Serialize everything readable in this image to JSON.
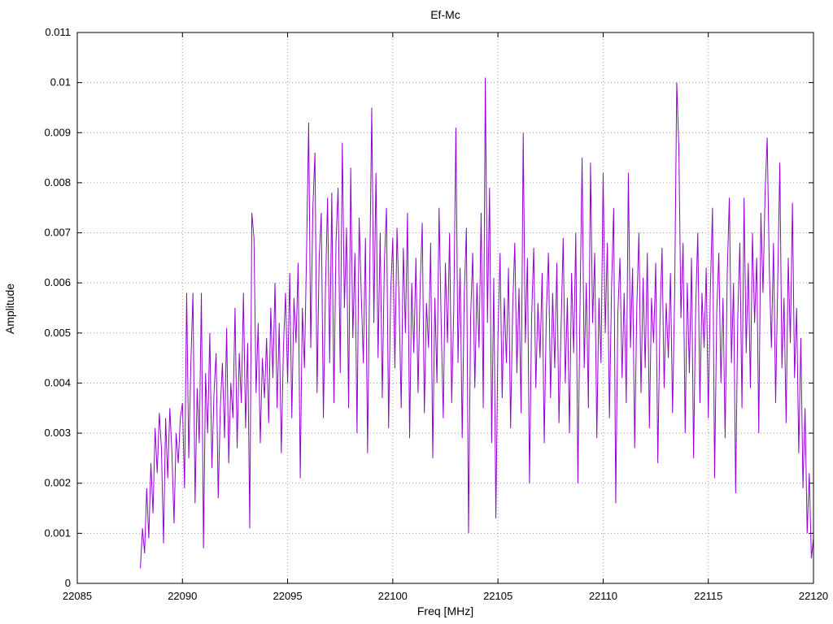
{
  "chart_data": {
    "type": "line",
    "title": "Ef-Mc",
    "xlabel": "Freq [MHz]",
    "ylabel": "Amplitude",
    "xlim": [
      22085,
      22120
    ],
    "ylim": [
      0,
      0.011
    ],
    "x_ticks": [
      22085,
      22090,
      22095,
      22100,
      22105,
      22110,
      22115,
      22120
    ],
    "y_ticks": [
      0,
      0.001,
      0.002,
      0.003,
      0.004,
      0.005,
      0.006,
      0.007,
      0.008,
      0.009,
      0.01,
      0.011
    ],
    "grid": true,
    "legend": "none",
    "line_color": "#9400d3",
    "series": [
      {
        "name": "Ef-Mc",
        "x_start": 22088.0,
        "x_step": 0.1,
        "values": [
          0.0003,
          0.0011,
          0.0006,
          0.0019,
          0.0009,
          0.0024,
          0.0014,
          0.0031,
          0.0022,
          0.0034,
          0.0027,
          0.0008,
          0.0033,
          0.0021,
          0.0035,
          0.0026,
          0.0012,
          0.003,
          0.0024,
          0.0033,
          0.0036,
          0.0019,
          0.0058,
          0.0025,
          0.0044,
          0.0058,
          0.0016,
          0.0039,
          0.0028,
          0.0058,
          0.0007,
          0.0042,
          0.003,
          0.005,
          0.0023,
          0.0038,
          0.0046,
          0.0017,
          0.0035,
          0.0044,
          0.0029,
          0.0051,
          0.0024,
          0.004,
          0.0033,
          0.0055,
          0.0027,
          0.0046,
          0.0036,
          0.0058,
          0.0031,
          0.0048,
          0.0011,
          0.0074,
          0.0069,
          0.0038,
          0.0052,
          0.0028,
          0.0045,
          0.0037,
          0.0049,
          0.0032,
          0.0055,
          0.0041,
          0.006,
          0.0035,
          0.0052,
          0.0026,
          0.0047,
          0.0058,
          0.004,
          0.0062,
          0.0033,
          0.0057,
          0.0048,
          0.0064,
          0.0021,
          0.0055,
          0.0043,
          0.0066,
          0.0092,
          0.0047,
          0.0075,
          0.0086,
          0.0038,
          0.0065,
          0.0074,
          0.0033,
          0.0059,
          0.0077,
          0.0044,
          0.0078,
          0.0036,
          0.0068,
          0.0079,
          0.0042,
          0.0088,
          0.0055,
          0.0071,
          0.0035,
          0.0083,
          0.0049,
          0.0066,
          0.003,
          0.0073,
          0.0058,
          0.0044,
          0.0069,
          0.0026,
          0.0061,
          0.0095,
          0.0052,
          0.0082,
          0.0045,
          0.007,
          0.0037,
          0.0064,
          0.0075,
          0.0031,
          0.0058,
          0.0069,
          0.0043,
          0.0071,
          0.0056,
          0.0035,
          0.0067,
          0.005,
          0.0074,
          0.0029,
          0.006,
          0.0046,
          0.0065,
          0.0038,
          0.0059,
          0.0072,
          0.0034,
          0.0056,
          0.0047,
          0.0068,
          0.0025,
          0.0057,
          0.004,
          0.0075,
          0.0052,
          0.0033,
          0.0064,
          0.0048,
          0.007,
          0.0036,
          0.0055,
          0.0091,
          0.0044,
          0.0063,
          0.0029,
          0.0058,
          0.0071,
          0.001,
          0.0053,
          0.0066,
          0.0039,
          0.006,
          0.0047,
          0.0074,
          0.0035,
          0.0101,
          0.0052,
          0.0079,
          0.0028,
          0.0061,
          0.0013,
          0.0049,
          0.0066,
          0.0037,
          0.0057,
          0.0044,
          0.0063,
          0.0031,
          0.0055,
          0.0068,
          0.0042,
          0.0059,
          0.0034,
          0.009,
          0.0048,
          0.0065,
          0.002,
          0.0053,
          0.0067,
          0.0039,
          0.0056,
          0.0045,
          0.0062,
          0.0028,
          0.0054,
          0.0066,
          0.0037,
          0.0058,
          0.0043,
          0.0064,
          0.0032,
          0.0051,
          0.0069,
          0.004,
          0.0057,
          0.003,
          0.0062,
          0.0046,
          0.007,
          0.002,
          0.0055,
          0.0085,
          0.0043,
          0.006,
          0.0035,
          0.0084,
          0.0052,
          0.0066,
          0.0029,
          0.0057,
          0.0044,
          0.0082,
          0.005,
          0.0068,
          0.0033,
          0.0059,
          0.0075,
          0.0016,
          0.0054,
          0.0065,
          0.0041,
          0.0058,
          0.0036,
          0.0082,
          0.0047,
          0.0063,
          0.0027,
          0.0055,
          0.007,
          0.0038,
          0.0061,
          0.0043,
          0.0066,
          0.0031,
          0.0057,
          0.0048,
          0.0064,
          0.0024,
          0.0052,
          0.0067,
          0.0039,
          0.0056,
          0.0045,
          0.0062,
          0.0034,
          0.0058,
          0.01,
          0.0087,
          0.0053,
          0.0068,
          0.003,
          0.006,
          0.0042,
          0.0065,
          0.0025,
          0.0055,
          0.007,
          0.0036,
          0.0058,
          0.0047,
          0.0063,
          0.0033,
          0.0059,
          0.0075,
          0.0021,
          0.0054,
          0.0066,
          0.004,
          0.0057,
          0.0029,
          0.0062,
          0.0077,
          0.0044,
          0.006,
          0.0018,
          0.0053,
          0.0068,
          0.0035,
          0.0077,
          0.0046,
          0.0064,
          0.0039,
          0.007,
          0.0052,
          0.0065,
          0.003,
          0.0074,
          0.0058,
          0.0078,
          0.0089,
          0.0063,
          0.0047,
          0.0068,
          0.0036,
          0.006,
          0.0084,
          0.0043,
          0.0057,
          0.0032,
          0.0065,
          0.0048,
          0.0076,
          0.0041,
          0.0055,
          0.0026,
          0.0049,
          0.0019,
          0.0035,
          0.001,
          0.0022,
          0.0005,
          0.0009
        ]
      }
    ]
  }
}
